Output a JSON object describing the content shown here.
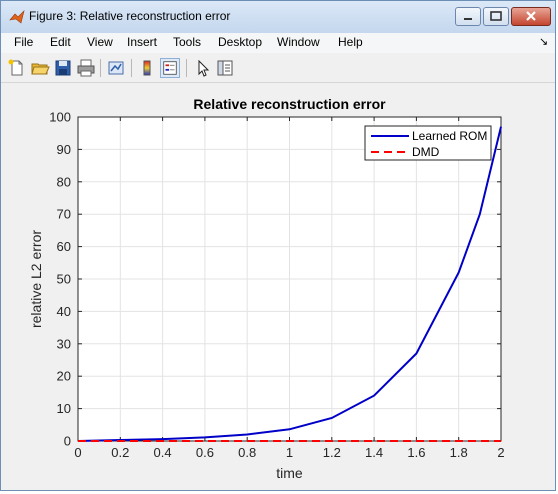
{
  "window": {
    "title": "Figure 3: Relative reconstruction error"
  },
  "menu": {
    "items": [
      "File",
      "Edit",
      "View",
      "Insert",
      "Tools",
      "Desktop",
      "Window",
      "Help"
    ],
    "dock_glyph": "↘"
  },
  "toolbar": {
    "icons": [
      "new-figure-icon",
      "open-file-icon",
      "save-icon",
      "print-icon",
      "link-plot-icon",
      "colorbar-icon",
      "legend-icon",
      "pointer-icon",
      "property-editor-icon"
    ]
  },
  "colors": {
    "learned_rom": "#0000c8",
    "dmd": "#ff0000"
  },
  "chart_data": {
    "type": "line",
    "title": "Relative reconstruction error",
    "xlabel": "time",
    "ylabel": "relative L2 error",
    "xlim": [
      0,
      2
    ],
    "ylim": [
      0,
      100
    ],
    "xticks": [
      0,
      0.2,
      0.4,
      0.6,
      0.8,
      1,
      1.2,
      1.4,
      1.6,
      1.8,
      2
    ],
    "xtick_labels": [
      "0",
      "0.2",
      "0.4",
      "0.6",
      "0.8",
      "1",
      "1.2",
      "1.4",
      "1.6",
      "1.8",
      "2"
    ],
    "yticks": [
      0,
      10,
      20,
      30,
      40,
      50,
      60,
      70,
      80,
      90,
      100
    ],
    "ytick_labels": [
      "0",
      "10",
      "20",
      "30",
      "40",
      "50",
      "60",
      "70",
      "80",
      "90",
      "100"
    ],
    "grid": true,
    "legend_position": "top-right",
    "series": [
      {
        "name": "Learned ROM",
        "style": "solid",
        "x": [
          0,
          0.2,
          0.4,
          0.6,
          0.8,
          1.0,
          1.2,
          1.4,
          1.6,
          1.8,
          1.9,
          2.0
        ],
        "y": [
          0,
          0.3,
          0.6,
          1.1,
          2.0,
          3.6,
          7.1,
          14.0,
          27.0,
          52.0,
          70.0,
          97.0
        ]
      },
      {
        "name": "DMD",
        "style": "dashed",
        "x": [
          0,
          0.5,
          1.0,
          1.5,
          2.0
        ],
        "y": [
          0,
          0,
          0,
          0,
          0
        ]
      }
    ]
  }
}
